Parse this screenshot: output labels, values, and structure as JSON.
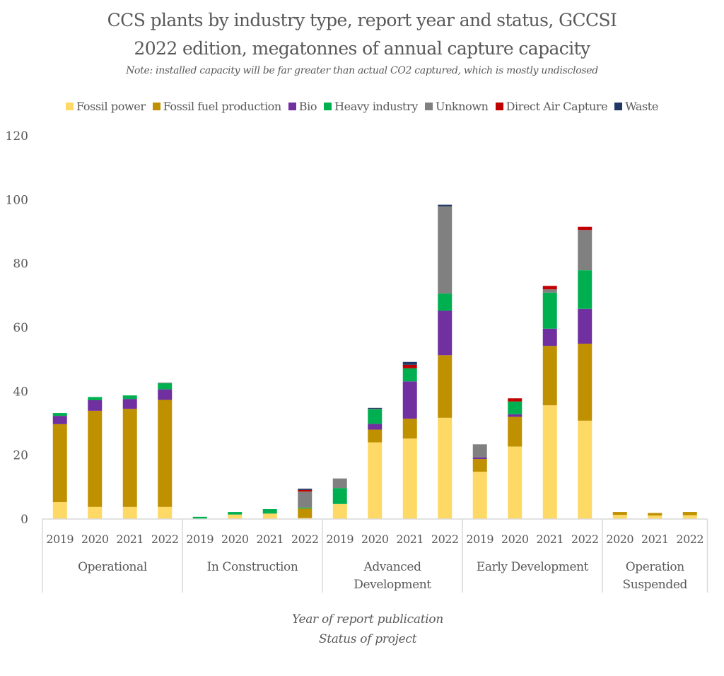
{
  "chart_data": {
    "type": "bar",
    "stacked": true,
    "title": "CCS plants by industry type, report year and status, GCCSI",
    "title_line2": "2022 edition, megatonnes of annual capture capacity",
    "subtitle": "Note: installed capacity will be far greater than actual CO2 captured, which is mostly undisclosed",
    "xlabel_line1": "Year of report publication",
    "xlabel_line2": "Status of project",
    "ylabel": "",
    "ylim": [
      0,
      120
    ],
    "yticks": [
      0,
      20,
      40,
      60,
      80,
      100,
      120
    ],
    "grid": false,
    "legend_position": "top",
    "groups": [
      {
        "label": "Operational",
        "years": [
          "2019",
          "2020",
          "2021",
          "2022"
        ]
      },
      {
        "label": "In Construction",
        "years": [
          "2019",
          "2020",
          "2021",
          "2022"
        ]
      },
      {
        "label": "Advanced Development",
        "label_lines": [
          "Advanced",
          "Development"
        ],
        "years": [
          "2019",
          "2020",
          "2021",
          "2022"
        ]
      },
      {
        "label": "Early Development",
        "years": [
          "2019",
          "2020",
          "2021",
          "2022"
        ]
      },
      {
        "label": "Operation Suspended",
        "label_lines": [
          "Operation",
          "Suspended"
        ],
        "years": [
          "2020",
          "2021",
          "2022"
        ]
      }
    ],
    "categories": [
      "Operational 2019",
      "Operational 2020",
      "Operational 2021",
      "Operational 2022",
      "In Construction 2019",
      "In Construction 2020",
      "In Construction 2021",
      "In Construction 2022",
      "Advanced Development 2019",
      "Advanced Development 2020",
      "Advanced Development 2021",
      "Advanced Development 2022",
      "Early Development 2019",
      "Early Development 2020",
      "Early Development 2021",
      "Early Development 2022",
      "Operation Suspended 2020",
      "Operation Suspended 2021",
      "Operation Suspended 2022"
    ],
    "series": [
      {
        "name": "Fossil power",
        "color": "#FFD966",
        "values": [
          5.3,
          3.8,
          3.8,
          3.8,
          0,
          1.4,
          1.7,
          0.3,
          4.7,
          24.0,
          25.2,
          31.7,
          14.8,
          22.7,
          35.6,
          30.8,
          1.3,
          1.1,
          1.2
        ]
      },
      {
        "name": "Fossil fuel production",
        "color": "#BF9000",
        "values": [
          24.4,
          30.1,
          30.7,
          33.5,
          0,
          0,
          0,
          3.0,
          0,
          4.0,
          6.2,
          19.6,
          4.0,
          9.3,
          18.6,
          24.1,
          0.9,
          0.8,
          1.0
        ]
      },
      {
        "name": "Bio",
        "color": "#7030A0",
        "values": [
          2.6,
          3.3,
          3.1,
          3.3,
          0,
          0,
          0,
          0,
          0,
          1.8,
          11.7,
          13.9,
          0.5,
          0.8,
          5.4,
          10.9,
          0,
          0,
          0
        ]
      },
      {
        "name": "Heavy industry",
        "color": "#00B050",
        "values": [
          0.9,
          1.0,
          1.1,
          1.9,
          0.7,
          0.8,
          1.4,
          0.3,
          5.0,
          4.6,
          4.1,
          5.4,
          0,
          4.0,
          11.3,
          12.1,
          0,
          0,
          0
        ]
      },
      {
        "name": "Unknown",
        "color": "#808080",
        "values": [
          0,
          0,
          0,
          0.2,
          0,
          0,
          0,
          5.0,
          3.0,
          0.1,
          0,
          27.3,
          4.1,
          0,
          1.0,
          12.6,
          0,
          0,
          0
        ]
      },
      {
        "name": "Direct Air Capture",
        "color": "#C00000",
        "values": [
          0,
          0,
          0,
          0,
          0,
          0,
          0,
          0.5,
          0,
          0,
          1.1,
          0,
          0,
          1.0,
          1.1,
          1.0,
          0,
          0,
          0
        ]
      },
      {
        "name": "Waste",
        "color": "#203864",
        "values": [
          0,
          0,
          0,
          0,
          0,
          0,
          0,
          0.4,
          0,
          0.3,
          0.9,
          0.5,
          0,
          0,
          0,
          0,
          0,
          0,
          0
        ]
      }
    ]
  }
}
